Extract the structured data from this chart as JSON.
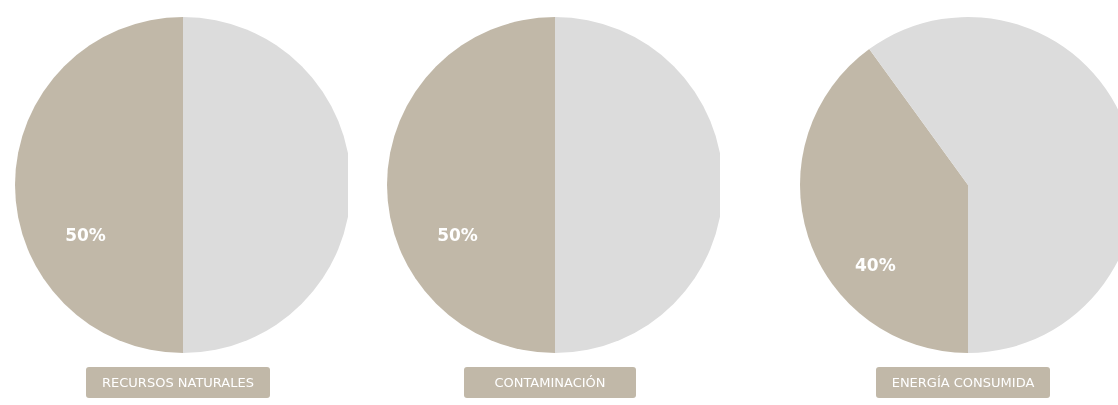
{
  "chart_data": [
    {
      "type": "pie",
      "title": "RECURSOS NATURALES",
      "categories": [
        null,
        null
      ],
      "values": [
        50,
        50
      ],
      "colors": [
        "#c1b8a8",
        "#dcdcdc"
      ],
      "value_labels": [
        "50%",
        null
      ]
    },
    {
      "type": "pie",
      "title": "CONTAMINACIÓN",
      "categories": [
        null,
        null
      ],
      "values": [
        50,
        50
      ],
      "colors": [
        "#c1b8a8",
        "#dcdcdc"
      ],
      "value_labels": [
        "50%",
        null
      ]
    },
    {
      "type": "pie",
      "title": "ENERGÍA CONSUMIDA",
      "categories": [
        null,
        null
      ],
      "values": [
        40,
        60
      ],
      "colors": [
        "#c1b8a8",
        "#dcdcdc"
      ],
      "value_labels": [
        "40%",
        null
      ]
    }
  ]
}
